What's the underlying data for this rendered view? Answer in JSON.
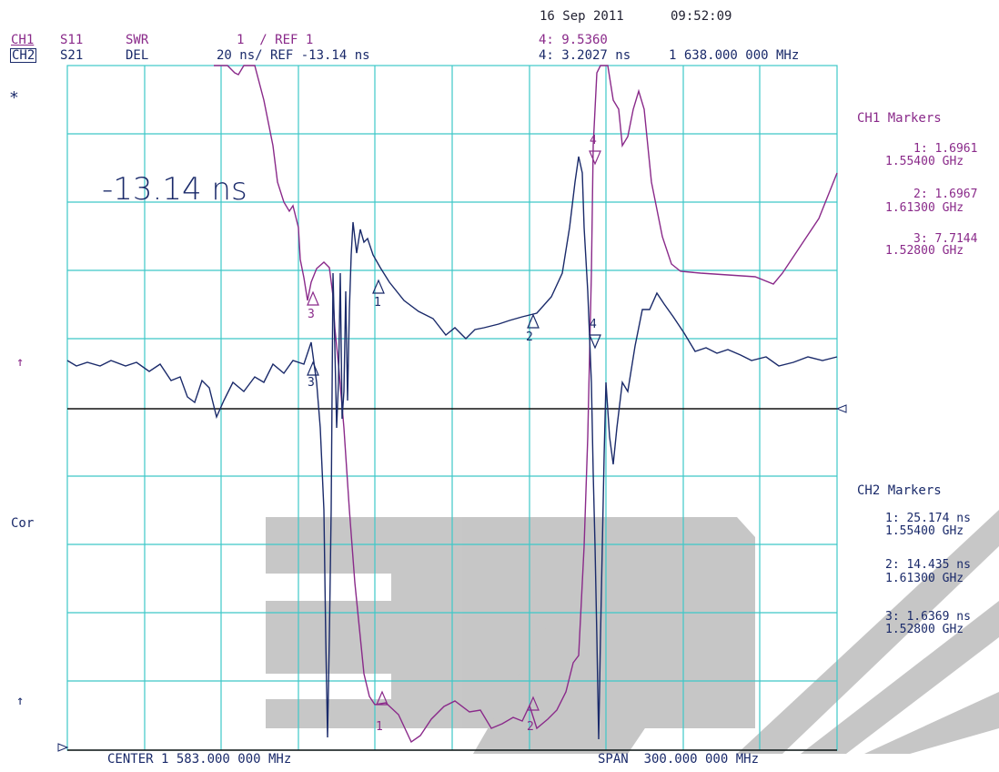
{
  "timestamp": {
    "date": "16 Sep 2011",
    "time": "09:52:09"
  },
  "header": {
    "ch1": {
      "channel": "CH1",
      "param": "S11",
      "format": "SWR",
      "scale_ref": "1  / REF 1",
      "marker_readout": "4: 9.5360"
    },
    "ch2": {
      "channel": "CH2",
      "param": "S21",
      "format": "DEL",
      "scale_ref": "20 ns/ REF -13.14 ns",
      "marker_readout": "4: 3.2027 ns"
    },
    "marker_freq": "1 638.000 000 MHz"
  },
  "left_annotations": {
    "star": "*",
    "ref_arrow_1": "↑",
    "cor": "Cor",
    "ref_arrow_2": "↑"
  },
  "ref_readout": "-13.14 ns",
  "ch1_markers": {
    "title": "CH1 Markers",
    "items": [
      {
        "value": "1: 1.6961",
        "freq": "1.55400 GHz"
      },
      {
        "value": "2: 1.6967",
        "freq": "1.61300 GHz"
      },
      {
        "value": "3: 7.7144",
        "freq": "1.52800 GHz"
      }
    ]
  },
  "ch2_markers": {
    "title": "CH2 Markers",
    "items": [
      {
        "value": "1: 25.174 ns",
        "freq": "1.55400 GHz"
      },
      {
        "value": "2: 14.435 ns",
        "freq": "1.61300 GHz"
      },
      {
        "value": "3: 1.6369 ns",
        "freq": "1.52800 GHz"
      }
    ]
  },
  "footer": {
    "center": "CENTER 1 583.000 000 MHz",
    "span": "SPAN  300.000 000 MHz"
  },
  "plot_markers": {
    "ch1": [
      "1",
      "2",
      "3",
      "4"
    ],
    "ch2": [
      "1",
      "2",
      "3",
      "4"
    ]
  },
  "colors": {
    "grid": "#3ec8c8",
    "ch1_trace": "#8a2a8a",
    "ch2_trace": "#1a2a6a",
    "watermark": "#b9b9b9"
  }
}
